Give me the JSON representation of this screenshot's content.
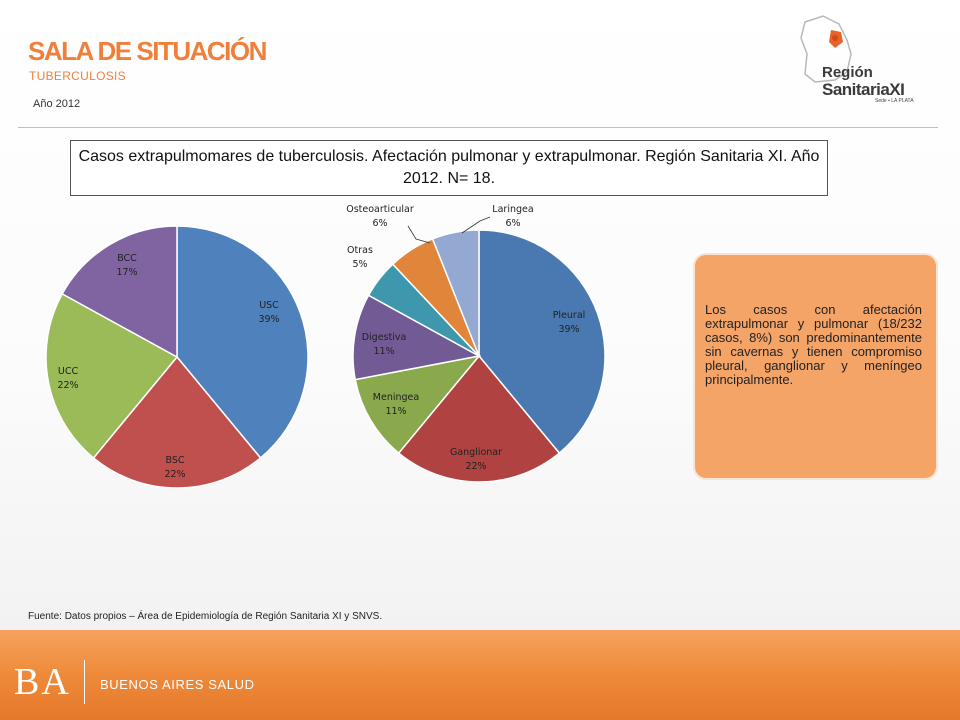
{
  "header": {
    "title": "SALA DE SITUACIÓN",
    "subtitle": "TUBERCULOSIS",
    "year": "Año 2012"
  },
  "logo": {
    "line1": "Región",
    "line2": "SanitariaXI",
    "line3": "Sede ▪ LA PLATA"
  },
  "chart_title": "Casos extrapulmomares de tuberculosis. Afectación pulmonar y extrapulmonar. Región Sanitaria XI. Año 2012. N= 18.",
  "chart_data": [
    {
      "type": "pie",
      "categories": [
        "USC",
        "BSC",
        "UCC",
        "BCC"
      ],
      "values": [
        39,
        22,
        22,
        17
      ],
      "value_labels": [
        "39%",
        "22%",
        "22%",
        "17%"
      ],
      "colors": [
        "#4f81bd",
        "#c0504d",
        "#9bbb59",
        "#8064a2"
      ]
    },
    {
      "type": "pie",
      "categories": [
        "Pleural",
        "Ganglionar",
        "Meningea",
        "Digestiva",
        "Otras",
        "Osteoarticular",
        "Laringea"
      ],
      "values": [
        39,
        22,
        11,
        11,
        5,
        6,
        6
      ],
      "value_labels": [
        "39%",
        "22%",
        "11%",
        "11%",
        "5%",
        "6%",
        "6%"
      ],
      "colors": [
        "#4a78b0",
        "#b04341",
        "#8aa84c",
        "#725a95",
        "#3f97ad",
        "#e0853a",
        "#93a9d1"
      ]
    }
  ],
  "note": "Los casos con afectación extrapulmonar y pulmonar (18/232 casos, 8%) son predominantemente sin cavernas y tienen compromiso pleural, ganglionar y meníngeo principalmente.",
  "source": "Fuente: Datos propios – Área de Epidemiología de Región Sanitaria XI y SNVS.",
  "footer": {
    "ba": "BA",
    "text": "BUENOS AIRES SALUD"
  }
}
